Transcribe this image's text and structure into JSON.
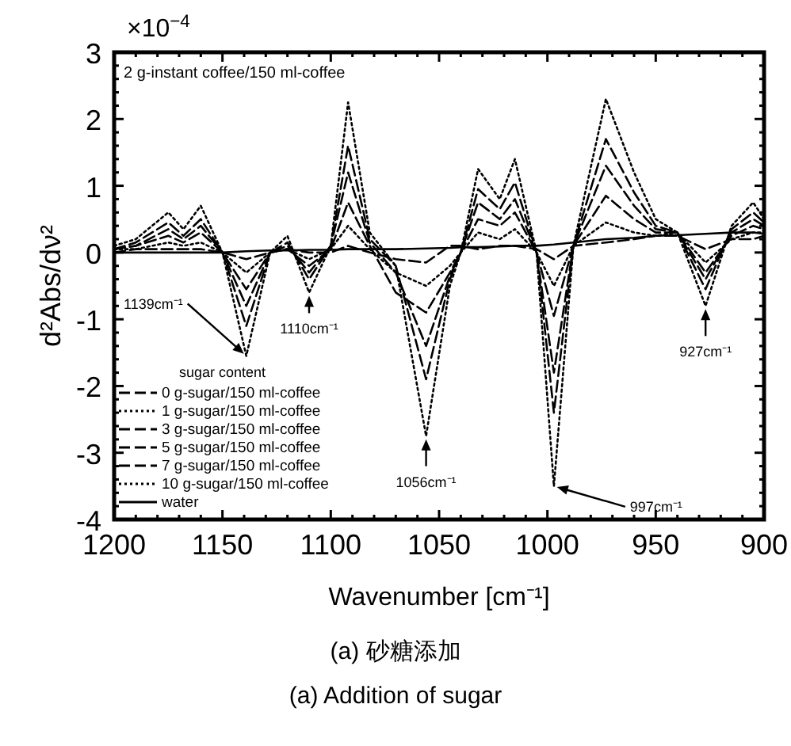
{
  "chart_data": {
    "type": "line",
    "xlabel": "Wavenumber  [cm⁻¹]",
    "ylabel": "d²Abs/dν²",
    "legend_title": "sugar content",
    "x": [
      1200,
      1190,
      1175,
      1168,
      1160,
      1150,
      1139,
      1128,
      1120,
      1110,
      1100,
      1092,
      1082,
      1070,
      1056,
      1045,
      1040,
      1032,
      1022,
      1015,
      1005,
      997,
      988,
      973,
      960,
      950,
      940,
      927,
      915,
      905,
      900
    ],
    "series": [
      {
        "name": "0 g-sugar/150 ml-coffee",
        "color": "#000000",
        "line_style": "dashed",
        "values": [
          0.0,
          0.05,
          0.05,
          0.05,
          0.05,
          0.0,
          -0.1,
          0.0,
          0.05,
          0.0,
          0.0,
          0.1,
          0.0,
          -0.1,
          -0.15,
          0.1,
          0.1,
          0.05,
          0.1,
          0.1,
          0.05,
          -0.1,
          0.1,
          0.15,
          0.2,
          0.25,
          0.25,
          0.05,
          0.2,
          0.2,
          0.25
        ]
      },
      {
        "name": "1 g-sugar/150 ml-coffee",
        "color": "#000000",
        "line_style": "dotted",
        "values": [
          0.05,
          0.05,
          0.15,
          0.1,
          0.15,
          0.0,
          -0.3,
          0.0,
          0.05,
          -0.1,
          0.05,
          0.4,
          0.05,
          -0.3,
          -0.5,
          -0.2,
          0.0,
          0.3,
          0.2,
          0.35,
          0.0,
          -0.5,
          0.1,
          0.45,
          0.3,
          0.25,
          0.3,
          -0.15,
          0.2,
          0.3,
          0.3
        ]
      },
      {
        "name": "3 g-sugar/150 ml-coffee",
        "color": "#000000",
        "line_style": "dashed",
        "values": [
          0.05,
          0.1,
          0.25,
          0.15,
          0.3,
          0.0,
          -0.55,
          0.0,
          0.05,
          -0.2,
          0.05,
          0.75,
          0.1,
          -0.6,
          -0.9,
          -0.3,
          0.0,
          0.5,
          0.4,
          0.6,
          0.0,
          -0.95,
          0.1,
          0.85,
          0.5,
          0.3,
          0.3,
          -0.3,
          0.25,
          0.4,
          0.35
        ]
      },
      {
        "name": "5 g-sugar/150 ml-coffee",
        "color": "#000000",
        "line_style": "dashed",
        "values": [
          0.05,
          0.1,
          0.35,
          0.2,
          0.4,
          0.0,
          -0.8,
          0.0,
          0.1,
          -0.3,
          0.1,
          1.2,
          0.15,
          -0.3,
          -1.4,
          -0.35,
          0.0,
          0.75,
          0.5,
          0.8,
          0.0,
          -1.8,
          0.1,
          1.3,
          0.7,
          0.35,
          0.3,
          -0.4,
          0.3,
          0.5,
          0.4
        ]
      },
      {
        "name": "7 g-sugar/150 ml-coffee",
        "color": "#000000",
        "line_style": "dashed",
        "values": [
          0.05,
          0.15,
          0.45,
          0.25,
          0.5,
          0.0,
          -1.1,
          0.0,
          0.15,
          -0.4,
          0.1,
          1.6,
          0.2,
          -0.2,
          -1.9,
          -0.4,
          0.0,
          0.95,
          0.65,
          1.05,
          0.0,
          -2.4,
          0.1,
          1.7,
          0.9,
          0.4,
          0.3,
          -0.55,
          0.35,
          0.6,
          0.45
        ]
      },
      {
        "name": "10 g-sugar/150 ml-coffee",
        "color": "#000000",
        "line_style": "dotted",
        "values": [
          0.1,
          0.2,
          0.6,
          0.35,
          0.7,
          0.0,
          -1.55,
          0.0,
          0.25,
          -0.6,
          0.1,
          2.25,
          0.3,
          -0.2,
          -2.75,
          -0.5,
          0.0,
          1.25,
          0.8,
          1.4,
          0.0,
          -3.5,
          0.1,
          2.3,
          1.2,
          0.5,
          0.3,
          -0.8,
          0.4,
          0.75,
          0.5
        ]
      },
      {
        "name": "water",
        "color": "#000000",
        "line_style": "solid",
        "values": [
          0.0,
          0.0,
          0.0,
          0.0,
          0.0,
          0.0,
          0.02,
          0.03,
          0.03,
          0.04,
          0.04,
          0.05,
          0.05,
          0.05,
          0.06,
          0.07,
          0.08,
          0.08,
          0.09,
          0.1,
          0.1,
          0.12,
          0.15,
          0.2,
          0.22,
          0.25,
          0.26,
          0.28,
          0.3,
          0.3,
          0.28
        ]
      }
    ],
    "xlim": [
      1200,
      900
    ],
    "xticks": [
      1200,
      1150,
      1100,
      1050,
      1000,
      950,
      900
    ],
    "ylim": [
      -4,
      3
    ],
    "yticks": [
      -4,
      -3,
      -2,
      -1,
      0,
      1,
      2,
      3
    ],
    "legend": "bottom left",
    "annotations": [
      "×10$^{−4}$",
      "2  g-instant coffee/150 ml-coffee",
      {
        "text": "1139cm⁻¹",
        "x": 1139,
        "y": -1.55
      },
      {
        "text": "1110cm⁻¹",
        "x": 1110,
        "y": -0.6
      },
      {
        "text": "1056cm⁻¹",
        "x": 1056,
        "y": -2.75
      },
      {
        "text": "997cm⁻¹",
        "x": 997,
        "y": -3.5
      },
      {
        "text": "927cm⁻¹",
        "x": 927,
        "y": -0.8
      },
      "(a)  砂糖添加",
      "(a) Addition of sugar"
    ]
  }
}
